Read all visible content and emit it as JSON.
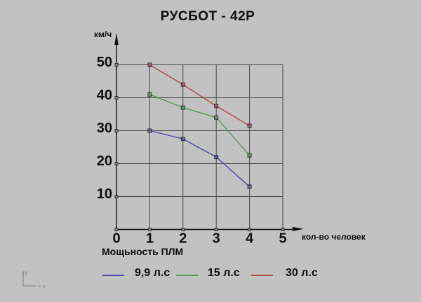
{
  "title": "РУСБОТ - 42Р",
  "axes": {
    "y_unit": "км/ч",
    "x_label": "кол-во человек"
  },
  "legend": {
    "title": "Мощьность ПЛМ",
    "items": [
      {
        "label": "9,9 л.с",
        "color": "#4a4aad"
      },
      {
        "label": "15 л.с",
        "color": "#4f9a4f"
      },
      {
        "label": "30 л.с",
        "color": "#b04a45"
      }
    ]
  },
  "chart_data": {
    "type": "line",
    "title": "РУСБОТ - 42Р",
    "x": [
      1,
      2,
      3,
      4
    ],
    "series": [
      {
        "name": "9,9 л.с",
        "color": "#4a4aad",
        "values": [
          30,
          27.5,
          22,
          13
        ]
      },
      {
        "name": "15 л.с",
        "color": "#4f9a4f",
        "values": [
          41,
          37,
          34,
          22.5
        ]
      },
      {
        "name": "30 л.с",
        "color": "#b04a45",
        "values": [
          50,
          44,
          37.5,
          31.5
        ]
      }
    ],
    "xlabel": "кол-во человек",
    "ylabel": "км/ч",
    "xlim": [
      0,
      5
    ],
    "ylim": [
      0,
      50
    ],
    "x_ticks": [
      0,
      1,
      2,
      3,
      4,
      5
    ],
    "y_ticks": [
      10,
      20,
      30,
      40,
      50
    ],
    "grid": true,
    "legend_position": "bottom"
  },
  "ucs_icon": {
    "x_label": "x",
    "y_label": "y"
  }
}
